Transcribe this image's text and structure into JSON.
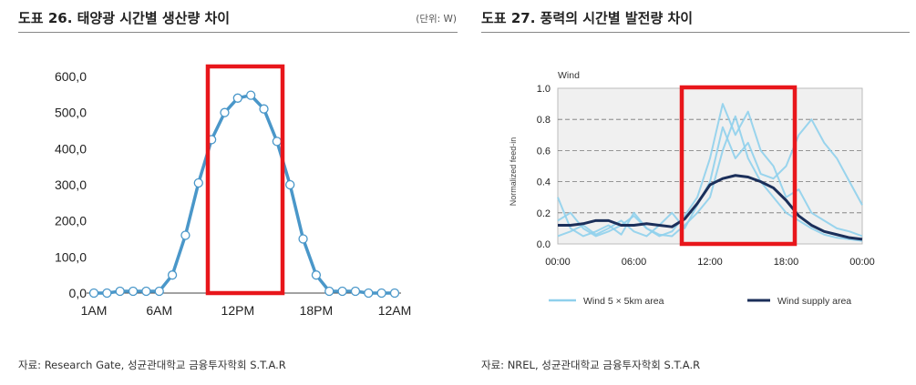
{
  "left": {
    "title": "도표 26. 태양광 시간별 생산량 차이",
    "unit": "(단위: W)",
    "source": "자료: Research Gate, 성균관대학교 금융투자학회 S.T.A.R"
  },
  "right": {
    "title": "도표 27. 풍력의 시간별 발전량 차이",
    "source": "자료: NREL, 성균관대학교 금융투자학회 S.T.A.R"
  },
  "colors": {
    "solar_line": "#4a97c9",
    "highlight_box": "#e8161b",
    "wind_light": "#8fd0ec",
    "wind_dark": "#1b2f5a",
    "plot_bg": "#f0f0f0"
  },
  "chart_data": [
    {
      "type": "line",
      "x": [
        1,
        2,
        3,
        4,
        5,
        6,
        7,
        8,
        9,
        10,
        11,
        12,
        13,
        14,
        15,
        16,
        17,
        18,
        19,
        20,
        21,
        22,
        23,
        24
      ],
      "values": [
        0,
        0,
        5,
        5,
        5,
        5,
        50,
        160,
        305,
        425,
        500,
        540,
        548,
        510,
        420,
        300,
        150,
        50,
        5,
        5,
        5,
        0,
        0,
        0
      ],
      "tick_labels": [
        "1AM",
        "6AM",
        "12PM",
        "18PM",
        "12AM"
      ],
      "tick_positions": [
        1,
        6,
        12,
        18,
        24
      ],
      "y_ticks": [
        "0,0",
        "100,0",
        "200,0",
        "300,0",
        "400,0",
        "500,0",
        "600,0"
      ],
      "ylim": [
        0,
        600
      ],
      "highlight_range": [
        10,
        16
      ],
      "grid": false,
      "legend": "none"
    },
    {
      "type": "line",
      "panel_title": "Wind",
      "ylabel": "Normalized feed-in",
      "xlim": [
        0,
        24
      ],
      "ylim": [
        0,
        1.0
      ],
      "x_tick_labels": [
        "00:00",
        "06:00",
        "12:00",
        "18:00",
        "00:00"
      ],
      "x_tick_positions": [
        0,
        6,
        12,
        18,
        24
      ],
      "y_tick_labels": [
        "0.0",
        "0.2",
        "0.4",
        "0.6",
        "0.8",
        "1.0"
      ],
      "y_tick_values": [
        0,
        0.2,
        0.4,
        0.6,
        0.8,
        1.0
      ],
      "grid": "horizontal dashed",
      "highlight_range": [
        10,
        18
      ],
      "legend": "bottom",
      "series": [
        {
          "name": "Wind supply area",
          "x": [
            0,
            1,
            2,
            3,
            4,
            5,
            6,
            7,
            8,
            9,
            10,
            11,
            12,
            13,
            14,
            15,
            16,
            17,
            18,
            19,
            20,
            21,
            22,
            23,
            24
          ],
          "values": [
            0.12,
            0.12,
            0.13,
            0.15,
            0.15,
            0.12,
            0.12,
            0.13,
            0.12,
            0.11,
            0.16,
            0.26,
            0.38,
            0.42,
            0.44,
            0.43,
            0.4,
            0.36,
            0.28,
            0.18,
            0.12,
            0.08,
            0.06,
            0.04,
            0.03
          ]
        },
        {
          "name": "Wind 5 × 5km area",
          "x": [
            0,
            1,
            2,
            3,
            4,
            5,
            6,
            7,
            8,
            9,
            10,
            11,
            12,
            13,
            14,
            15,
            16,
            17,
            18,
            19,
            20,
            21,
            22,
            23,
            24
          ],
          "values": [
            0.3,
            0.1,
            0.05,
            0.08,
            0.12,
            0.06,
            0.2,
            0.1,
            0.05,
            0.08,
            0.18,
            0.3,
            0.55,
            0.9,
            0.7,
            0.85,
            0.6,
            0.5,
            0.3,
            0.35,
            0.2,
            0.15,
            0.1,
            0.08,
            0.05
          ]
        },
        {
          "name": "",
          "x": [
            0,
            1,
            2,
            3,
            4,
            5,
            6,
            7,
            8,
            9,
            10,
            11,
            12,
            13,
            14,
            15,
            16,
            17,
            18,
            19,
            20,
            21,
            22,
            23,
            24
          ],
          "values": [
            0.05,
            0.08,
            0.12,
            0.06,
            0.1,
            0.15,
            0.08,
            0.05,
            0.12,
            0.2,
            0.1,
            0.25,
            0.4,
            0.75,
            0.55,
            0.65,
            0.45,
            0.42,
            0.5,
            0.7,
            0.8,
            0.65,
            0.55,
            0.4,
            0.25
          ]
        },
        {
          "name": "",
          "x": [
            0,
            1,
            2,
            3,
            4,
            5,
            6,
            7,
            8,
            9,
            10,
            11,
            12,
            13,
            14,
            15,
            16,
            17,
            18,
            19,
            20,
            21,
            22,
            23,
            24
          ],
          "values": [
            0.15,
            0.2,
            0.1,
            0.05,
            0.08,
            0.12,
            0.18,
            0.1,
            0.06,
            0.05,
            0.12,
            0.2,
            0.3,
            0.6,
            0.82,
            0.55,
            0.4,
            0.3,
            0.2,
            0.15,
            0.1,
            0.06,
            0.04,
            0.03,
            0.02
          ]
        }
      ],
      "legend_entries": [
        "Wind 5 × 5km area",
        "Wind supply area"
      ]
    }
  ]
}
